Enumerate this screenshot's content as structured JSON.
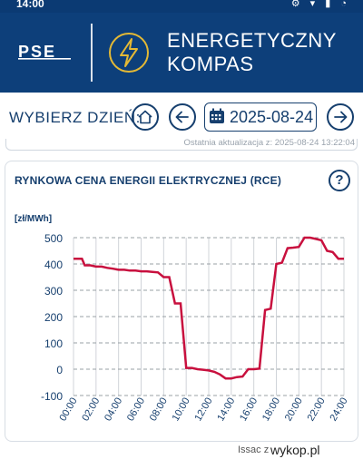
{
  "statusbar": {
    "time": "14:00",
    "icons": "⚙ ▾ ▮ ◔"
  },
  "header": {
    "logo_text": "PSE",
    "title_line1": "ENERGETYCZNY",
    "title_line2": "KOMPAS"
  },
  "nav": {
    "label": "WYBIERZ DZIEŃ:",
    "date": "2025-08-24",
    "home_icon": "home-icon",
    "prev_icon": "arrow-left-icon",
    "next_icon": "arrow-right-icon"
  },
  "update": {
    "text": "Ostatnia aktualizacja z: 2025-08-24 13:22:04"
  },
  "card": {
    "title": "RYNKOWA CENA ENERGII ELEKTRYCZNEJ (RCE)",
    "help": "?"
  },
  "chart_data": {
    "type": "line",
    "ylabel": "[zł/MWh]",
    "ylim": [
      -100,
      500
    ],
    "yticks": [
      500,
      400,
      300,
      200,
      100,
      0,
      -100
    ],
    "xticks": [
      "00:00",
      "02:00",
      "04:00",
      "06:00",
      "08:00",
      "10:00",
      "12:00",
      "14:00",
      "16:00",
      "18:00",
      "20:00",
      "22:00",
      "24:00"
    ],
    "line_color": "#c8103e",
    "grid": "dashed",
    "series": [
      {
        "points": [
          [
            0.0,
            420
          ],
          [
            0.5,
            420
          ],
          [
            0.75,
            420
          ],
          [
            1.0,
            395
          ],
          [
            1.5,
            395
          ],
          [
            2.0,
            390
          ],
          [
            2.5,
            390
          ],
          [
            3.0,
            385
          ],
          [
            3.5,
            382
          ],
          [
            4.0,
            378
          ],
          [
            4.5,
            378
          ],
          [
            5.0,
            375
          ],
          [
            5.5,
            375
          ],
          [
            6.0,
            372
          ],
          [
            6.5,
            372
          ],
          [
            7.0,
            370
          ],
          [
            7.5,
            368
          ],
          [
            8.0,
            350
          ],
          [
            8.5,
            350
          ],
          [
            9.0,
            250
          ],
          [
            9.5,
            250
          ],
          [
            10.0,
            5
          ],
          [
            10.5,
            5
          ],
          [
            11.0,
            0
          ],
          [
            11.5,
            -2
          ],
          [
            12.0,
            -5
          ],
          [
            12.5,
            -10
          ],
          [
            13.0,
            -20
          ],
          [
            13.5,
            -35
          ],
          [
            14.0,
            -35
          ],
          [
            14.5,
            -30
          ],
          [
            15.0,
            -28
          ],
          [
            15.5,
            0
          ],
          [
            16.0,
            0
          ],
          [
            16.5,
            2
          ],
          [
            17.0,
            225
          ],
          [
            17.5,
            230
          ],
          [
            18.0,
            400
          ],
          [
            18.5,
            405
          ],
          [
            19.0,
            460
          ],
          [
            19.5,
            462
          ],
          [
            20.0,
            465
          ],
          [
            20.5,
            500
          ],
          [
            21.0,
            500
          ],
          [
            21.5,
            495
          ],
          [
            22.0,
            490
          ],
          [
            22.5,
            450
          ],
          [
            23.0,
            445
          ],
          [
            23.5,
            420
          ],
          [
            24.0,
            420
          ]
        ]
      }
    ]
  },
  "footer": {
    "user": "Issac z",
    "brand": "wykop.pl"
  }
}
